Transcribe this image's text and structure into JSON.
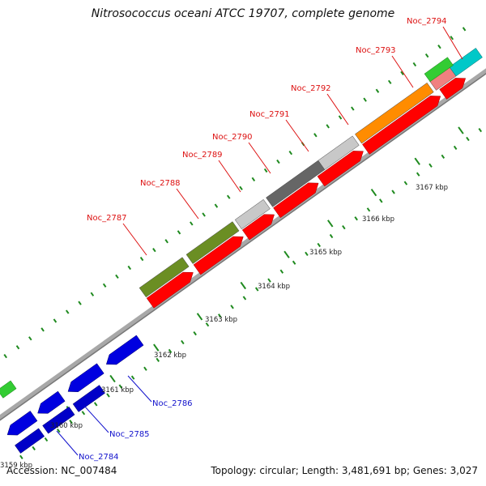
{
  "title": "Nitrosococcus oceani ATCC 19707, complete genome",
  "footer": {
    "accession": "Accession: NC_007484",
    "summary": "Topology: circular; Length: 3,481,691 bp; Genes: 3,027"
  },
  "colors": {
    "forward_label": "#dd1111",
    "reverse_label": "#1111cc",
    "backbone": "#a8a8a8",
    "tick": "#1f8a1f"
  },
  "forward_genes": [
    {
      "locus": "Noc_2787",
      "color": "#6b8e23"
    },
    {
      "locus": "Noc_2788",
      "color": "#6b8e23"
    },
    {
      "locus": "Noc_2789",
      "color": "#c8c8c8"
    },
    {
      "locus": "Noc_2790",
      "color": "#666666"
    },
    {
      "locus": "Noc_2791",
      "color": "#666666"
    },
    {
      "locus": "Noc_2792",
      "color": "#c8c8c8"
    },
    {
      "locus": "Noc_2793",
      "color": "#ff8c00"
    },
    {
      "locus": "Noc_2794",
      "color": "#f08080"
    }
  ],
  "reverse_genes": [
    {
      "locus": "Noc_2784",
      "color": "#0000e0"
    },
    {
      "locus": "Noc_2785",
      "color": "#0000e0"
    },
    {
      "locus": "Noc_2786",
      "color": "#0000e0"
    }
  ],
  "tick_labels": [
    "3159 kbp",
    "3160 kbp",
    "3161 kbp",
    "3162 kbp",
    "3163 kbp",
    "3164 kbp",
    "3165 kbp",
    "3166 kbp",
    "3167 kbp"
  ]
}
